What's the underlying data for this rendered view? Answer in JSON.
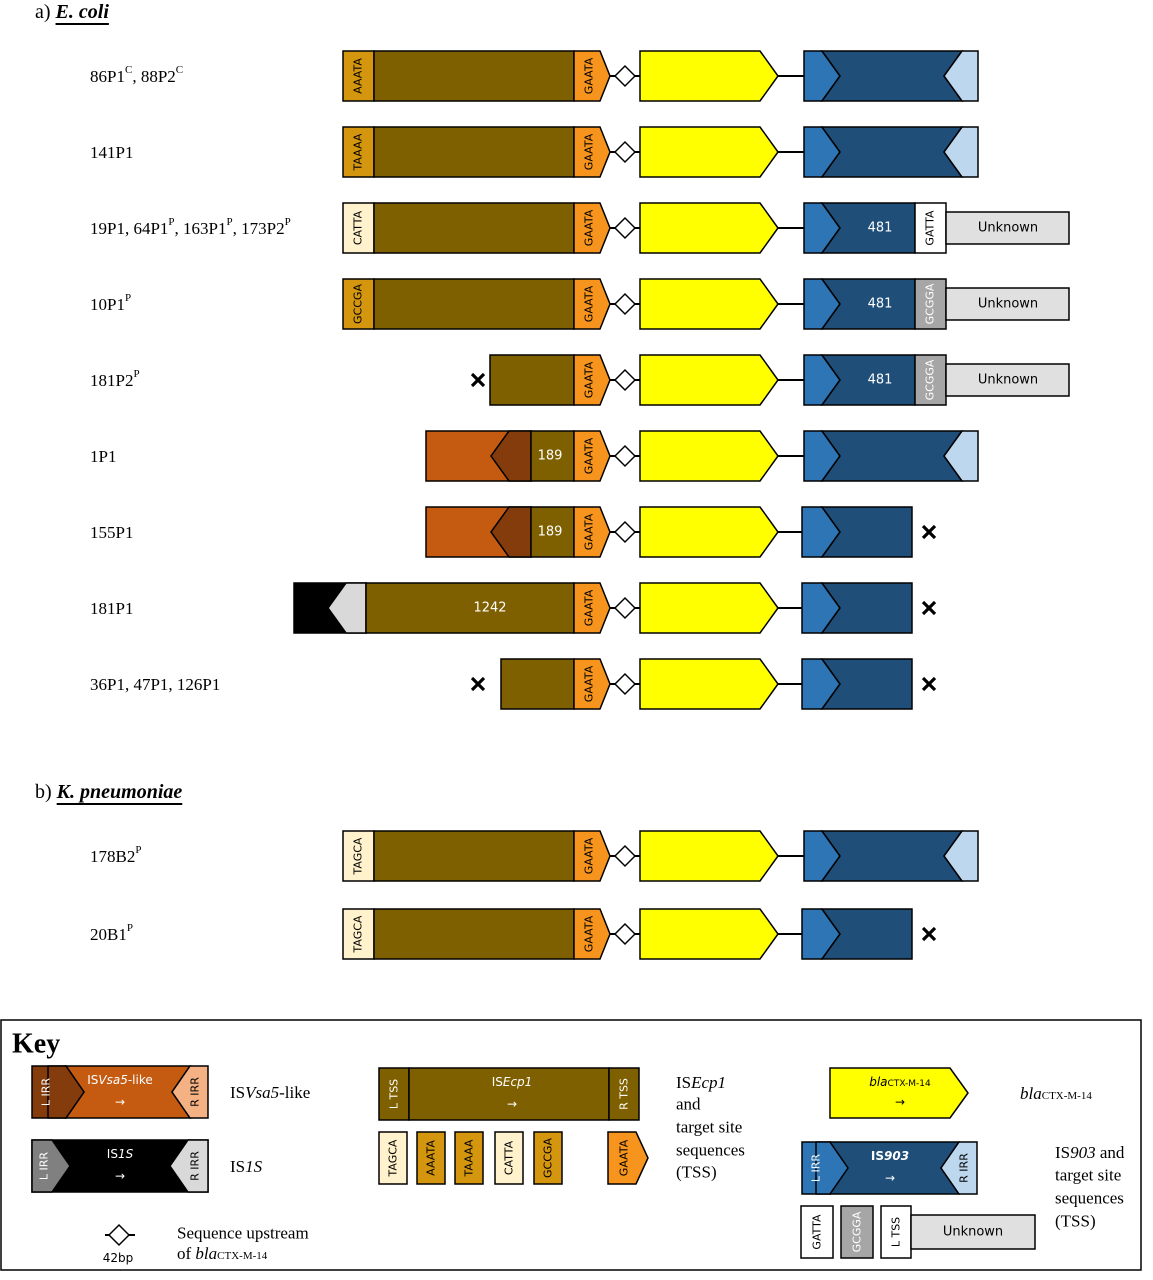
{
  "section_a": {
    "prefix": "a)",
    "organism": "E. coli"
  },
  "section_b": {
    "prefix": "b)",
    "organism": "K. pneumoniae"
  },
  "rows_a": [
    {
      "label": "86P1",
      "sup": "C",
      "label2": ", 88P2",
      "sup2": "C",
      "tss": "AAATA"
    },
    {
      "label": "141P1",
      "tss": "TAAAA"
    },
    {
      "label": "19P1, 64P1",
      "sup": "P",
      "label2": ", 163P1",
      "sup2": "P",
      "label3": ", 173P2",
      "sup3": "P",
      "tss": "CATTA",
      "is903_len": "481",
      "is903_tss": "GATTA",
      "unknown": "Unknown"
    },
    {
      "label": "10P1",
      "sup": "P",
      "tss": "GCCGA",
      "is903_len": "481",
      "is903_tss": "GCGGA",
      "unknown": "Unknown"
    },
    {
      "label": "181P2",
      "sup": "P",
      "is903_len": "481",
      "is903_tss": "GCGGA",
      "unknown": "Unknown"
    },
    {
      "label": "1P1",
      "iscp_len": "189"
    },
    {
      "label": "155P1",
      "iscp_len": "189"
    },
    {
      "label": "181P1",
      "iscp_len": "1242"
    },
    {
      "label": "36P1, 47P1, 126P1"
    }
  ],
  "rows_b": [
    {
      "label": "178B2",
      "sup": "P",
      "tss": "TAGCA"
    },
    {
      "label": "20B1",
      "sup": "P",
      "tss": "TAGCA"
    }
  ],
  "gaata": "GAATA",
  "key": {
    "title": "Key",
    "isvsa5": {
      "lirr": "L IRR",
      "name_pre": "IS",
      "name_it": "Vsa5",
      "name_post": "-like",
      "rirr": "R IRR",
      "arrow": "→",
      "desc_pre": "IS",
      "desc_it": "Vsa5",
      "desc_post": "-like"
    },
    "is1s": {
      "lirr": "L IRR",
      "name_pre": "IS",
      "name_it": "1S",
      "rirr": "R IRR",
      "arrow": "→",
      "desc_pre": "IS",
      "desc_it": "1S"
    },
    "upstream": {
      "bp": "42bp",
      "line1": "Sequence upstream",
      "line2_pre": "of ",
      "line2_it": "bla",
      "line2_sub": "CTX-M-14"
    },
    "isecp1": {
      "ltss": "L TSS",
      "name_pre": "IS",
      "name_it": "Ecp1",
      "rtss": "R TSS",
      "arrow": "→",
      "desc_pre": "IS",
      "desc_it": "Ecp1",
      "desc2": "and",
      "desc3": "target site",
      "desc4": "sequences",
      "desc5": "(TSS)",
      "tss_list": [
        "TAGCA",
        "AAATA",
        "TAAAA",
        "CATTA",
        "GCCGA"
      ],
      "gaata": "GAATA"
    },
    "bla": {
      "name_it": "bla",
      "name_sub": "CTX-M-14",
      "arrow": "→",
      "desc_it": "bla",
      "desc_sub": "CTX-M-14"
    },
    "is903": {
      "lirr": "L IRR",
      "name_pre": "IS",
      "name_it": "903",
      "rirr": "R IRR",
      "arrow": "→",
      "desc_pre": "IS",
      "desc_it": "903",
      "desc_post": " and",
      "desc2": "target site",
      "desc3": "sequences",
      "desc4": "(TSS)",
      "tss1": "GATTA",
      "tss2": "GCGGA",
      "ltss": "L TSS",
      "unknown": "Unknown"
    }
  },
  "colors": {
    "isecp1": "#7f6000",
    "tss_gold": "#d4960f",
    "tss_light": "#fff2cc",
    "gaata": "#f7941d",
    "bla": "#ffff00",
    "is903": "#1f4e79",
    "is903_lirr": "#2e75b6",
    "is903_rirr": "#bdd7ee",
    "isvsa5": "#c55a11",
    "isvsa5_dark": "#843c0c",
    "isvsa5_rirr": "#f4b183",
    "is1s_grey": "#808080",
    "is1s_light": "#d9d9d9",
    "gcgga": "#a6a6a6",
    "unknown": "#e0e0e0"
  }
}
